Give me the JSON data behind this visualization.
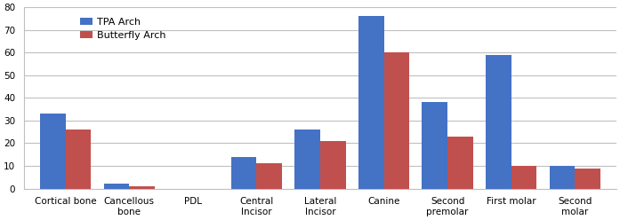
{
  "categories": [
    "Cortical bone",
    "Cancellous\nbone",
    "PDL",
    "Central\nIncisor",
    "Lateral\nIncisor",
    "Canine",
    "Second\npremolar",
    "First molar",
    "Second\nmolar"
  ],
  "tpa_values": [
    33,
    2,
    0,
    14,
    26,
    76,
    38,
    59,
    10
  ],
  "butterfly_values": [
    26,
    1,
    0,
    11,
    21,
    60,
    23,
    10,
    9
  ],
  "tpa_color": "#4472C4",
  "butterfly_color": "#C0504D",
  "tpa_label": "TPA Arch",
  "butterfly_label": "Butterfly Arch",
  "ylim": [
    0,
    80
  ],
  "yticks": [
    0,
    10,
    20,
    30,
    40,
    50,
    60,
    70,
    80
  ],
  "bar_width": 0.4,
  "figsize": [
    6.97,
    2.48
  ],
  "dpi": 100,
  "background_color": "#FFFFFF",
  "grid_color": "#C0C0C0",
  "legend_fontsize": 8,
  "tick_fontsize": 7.5
}
